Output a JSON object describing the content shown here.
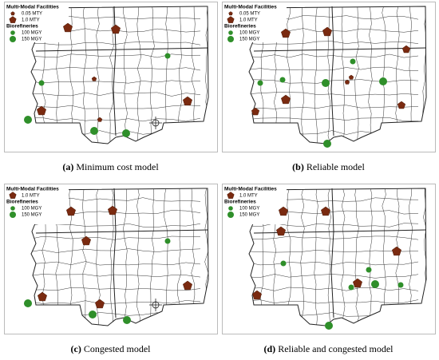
{
  "panels": [
    {
      "label": "(a)",
      "caption": "Minimum cost model",
      "legend": {
        "facilities_title": "Multi-Modal Facilities",
        "facilities": [
          "0.05 MTY",
          "1.0 MTY"
        ],
        "biorefineries_title": "Biorefineries",
        "biorefineries": [
          "100 MGY",
          "150 MGY"
        ]
      }
    },
    {
      "label": "(b)",
      "caption": "Reliable model",
      "legend": {
        "facilities_title": "Multi-Modal Facilities",
        "facilities": [
          "0.05 MTY",
          "1.0 MTY"
        ],
        "biorefineries_title": "Biorefineries",
        "biorefineries": [
          "100 MGY",
          "150 MGY"
        ]
      }
    },
    {
      "label": "(c)",
      "caption": "Congested model",
      "legend": {
        "facilities_title": "Multi-Modal Facilities",
        "facilities": [
          "1.0 MTY"
        ],
        "biorefineries_title": "Biorefineries",
        "biorefineries": [
          "100 MGY",
          "150 MGY"
        ]
      }
    },
    {
      "label": "(d)",
      "caption": "Reliable and congested model",
      "legend": {
        "facilities_title": "Multi-Modal Facilities",
        "facilities": [
          "1.0 MTY"
        ],
        "biorefineries_title": "Biorefineries",
        "biorefineries": [
          "100 MGY",
          "150 MGY"
        ]
      }
    }
  ]
}
